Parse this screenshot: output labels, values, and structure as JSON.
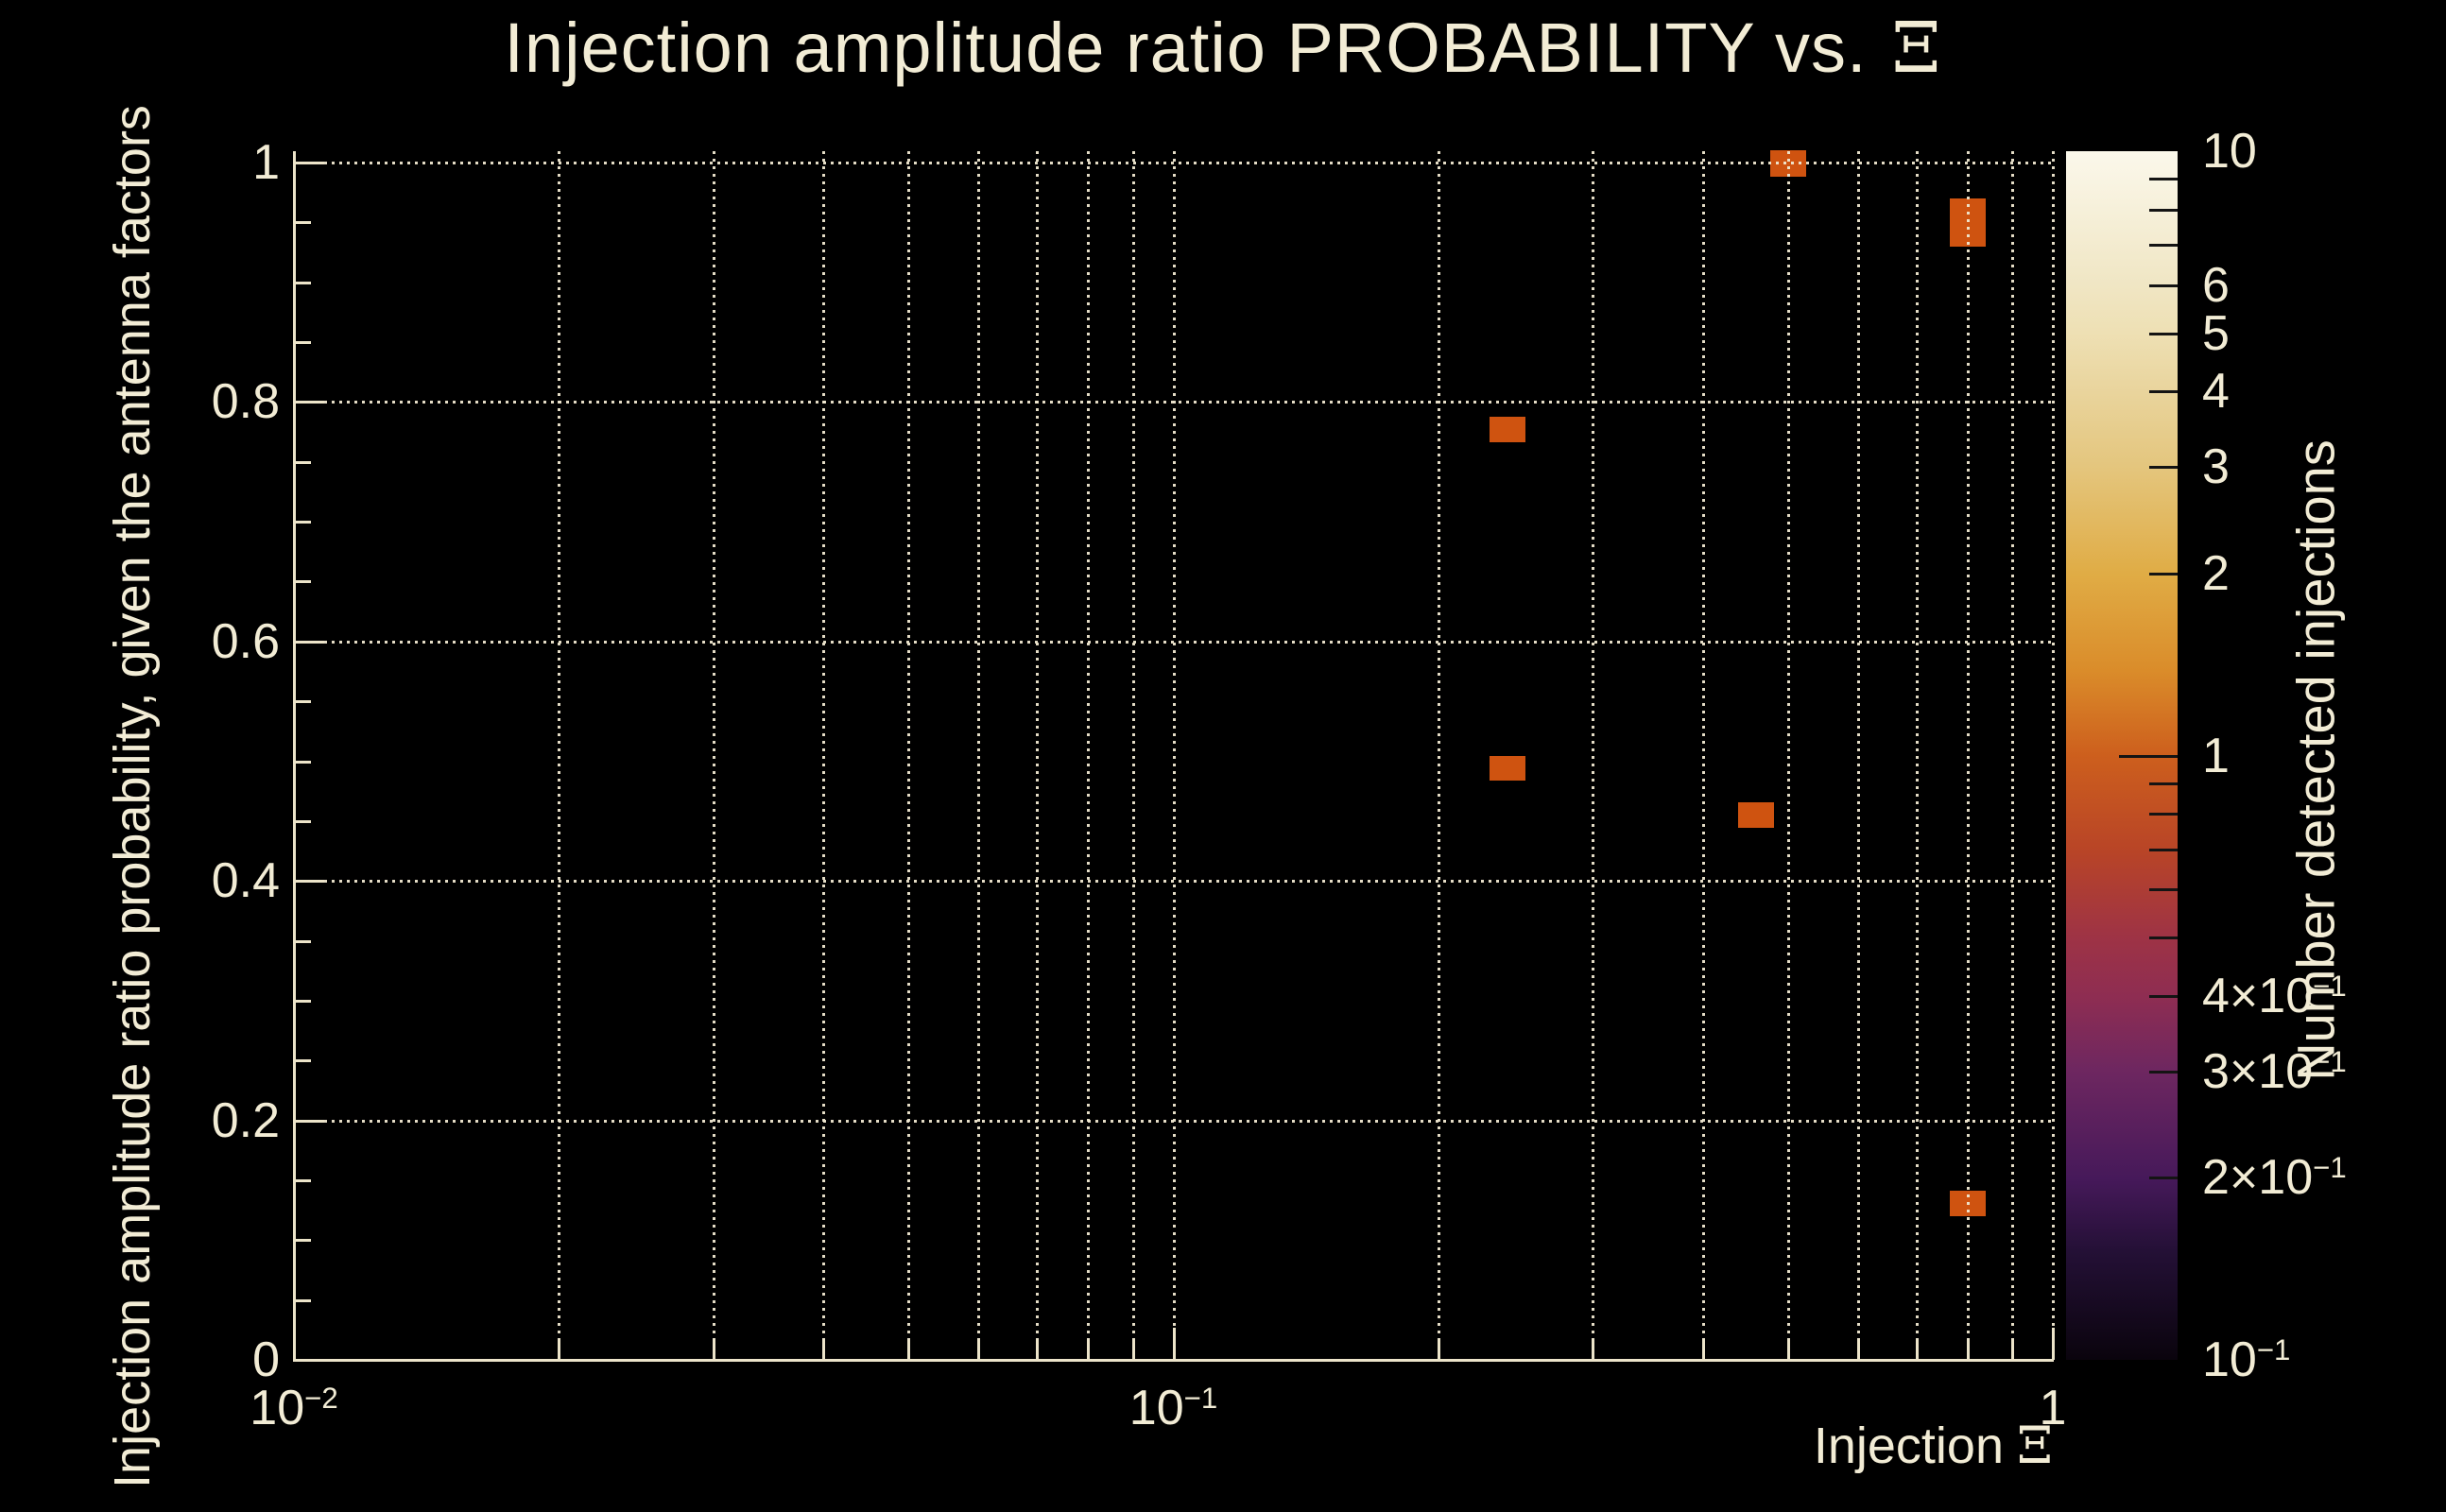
{
  "title": {
    "text": "Injection amplitude ratio PROBABILITY vs.",
    "symbol": "Ξ"
  },
  "colors": {
    "background": "#000000",
    "text": "#f2ecd5",
    "axis": "#ece4c9",
    "grid": "rgba(240,232,208,0.95)",
    "marker": "#cf5310",
    "colorbar_tick": "#141414"
  },
  "axes": {
    "x": {
      "title": "Injection",
      "title_symbol": "Ξ",
      "scale": "log",
      "min": 0.01,
      "max": 1,
      "tick_labels": [
        {
          "base": "10",
          "exp": "−2",
          "value": 0.01
        },
        {
          "base": "10",
          "exp": "−1",
          "value": 0.1
        },
        {
          "base": "1",
          "exp": "",
          "value": 1
        }
      ]
    },
    "y": {
      "title": "Injection amplitude ratio probability, given the antenna factors",
      "scale": "linear",
      "min": 0,
      "max": 1,
      "major_step": 0.2,
      "minor_step": 0.05,
      "tick_labels": [
        {
          "text": "0",
          "value": 0
        },
        {
          "text": "0.2",
          "value": 0.2
        },
        {
          "text": "0.4",
          "value": 0.4
        },
        {
          "text": "0.6",
          "value": 0.6
        },
        {
          "text": "0.8",
          "value": 0.8
        },
        {
          "text": "1",
          "value": 1
        }
      ]
    }
  },
  "colorbar": {
    "title": "Number detected injections",
    "scale": "log",
    "min": 0.1,
    "max": 10,
    "ticks": [
      {
        "v": 10,
        "label": {
          "base": "10",
          "exp": ""
        },
        "edge": true
      },
      {
        "v": 9
      },
      {
        "v": 8
      },
      {
        "v": 7
      },
      {
        "v": 6,
        "label": {
          "base": "6",
          "exp": ""
        }
      },
      {
        "v": 5,
        "label": {
          "base": "5",
          "exp": ""
        }
      },
      {
        "v": 4,
        "label": {
          "base": "4",
          "exp": ""
        }
      },
      {
        "v": 3,
        "label": {
          "base": "3",
          "exp": ""
        }
      },
      {
        "v": 2,
        "label": {
          "base": "2",
          "exp": ""
        }
      },
      {
        "v": 1,
        "label": {
          "base": "1",
          "exp": ""
        },
        "long": true
      },
      {
        "v": 0.9
      },
      {
        "v": 0.8
      },
      {
        "v": 0.7
      },
      {
        "v": 0.6
      },
      {
        "v": 0.5
      },
      {
        "v": 0.4,
        "label": {
          "base": "4×10",
          "exp": "−1"
        }
      },
      {
        "v": 0.3,
        "label": {
          "base": "3×10",
          "exp": "−1"
        }
      },
      {
        "v": 0.2,
        "label": {
          "base": "2×10",
          "exp": "−1"
        }
      },
      {
        "v": 0.1,
        "label": {
          "base": "10",
          "exp": "−1"
        },
        "edge": true
      }
    ],
    "gradient": [
      [
        "0%",
        "#fbf8eb"
      ],
      [
        "11%",
        "#f0e6c4"
      ],
      [
        "15%",
        "#eee0b4"
      ],
      [
        "20%",
        "#e9d49c"
      ],
      [
        "26%",
        "#e4c67e"
      ],
      [
        "35%",
        "#e0ac45"
      ],
      [
        "43%",
        "#da8c2a"
      ],
      [
        "50%",
        "#cd5f1d"
      ],
      [
        "58%",
        "#b84427"
      ],
      [
        "65%",
        "#9e3345"
      ],
      [
        "70%",
        "#8e2d52"
      ],
      [
        "76%",
        "#6e2760"
      ],
      [
        "85%",
        "#46195a"
      ],
      [
        "91%",
        "#241036"
      ],
      [
        "100%",
        "#0a040d"
      ]
    ]
  },
  "chart_data": {
    "type": "heatmap",
    "title": "Injection amplitude ratio PROBABILITY vs. Ξ",
    "xlabel": "Injection Ξ",
    "ylabel": "Injection amplitude ratio probability, given the antenna factors",
    "zlabel": "Number detected injections",
    "x_scale": "log",
    "xlim": [
      0.01,
      1
    ],
    "ylim": [
      0,
      1
    ],
    "z_scale": "log",
    "zlim": [
      0.1,
      10
    ],
    "grid": true,
    "marker_color": "#cf5310",
    "points": [
      {
        "x": 0.5,
        "y": 0.999,
        "n": 1,
        "h": 28
      },
      {
        "x": 0.8,
        "y": 0.95,
        "n": 1,
        "h": 51
      },
      {
        "x": 0.24,
        "y": 0.777,
        "n": 1,
        "h": 27
      },
      {
        "x": 0.24,
        "y": 0.494,
        "n": 1,
        "h": 26
      },
      {
        "x": 0.46,
        "y": 0.455,
        "n": 1,
        "h": 27
      },
      {
        "x": 0.8,
        "y": 0.131,
        "n": 1,
        "h": 27
      }
    ]
  }
}
